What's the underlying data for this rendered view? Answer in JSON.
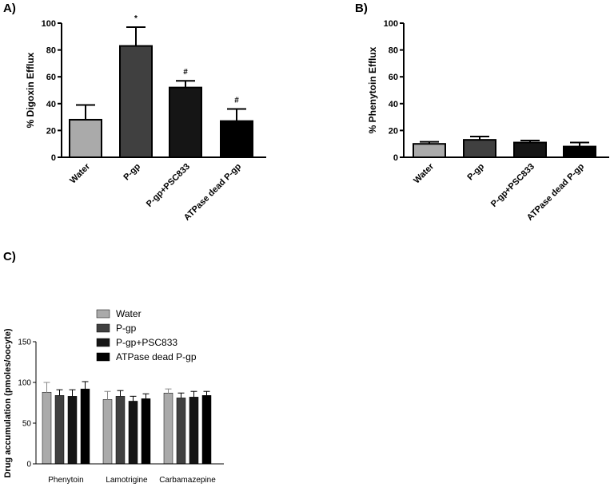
{
  "colors": {
    "water": "#aaaaaa",
    "pgp": "#404040",
    "pgp_psc833": "#151515",
    "atpase_dead": "#000000"
  },
  "chart_data": [
    {
      "panel": "A)",
      "type": "bar",
      "ylabel": "% Digoxin Efflux",
      "ylim": [
        0,
        100
      ],
      "yticks": [
        0,
        20,
        40,
        60,
        80,
        100
      ],
      "categories": [
        "Water",
        "P-gp",
        "P-gp+PSC833",
        "ATPase dead P-gp"
      ],
      "values": [
        28,
        83,
        52,
        27
      ],
      "errors": [
        11,
        14,
        5,
        9
      ],
      "annotations": [
        "",
        "*",
        "#",
        "#"
      ]
    },
    {
      "panel": "B)",
      "type": "bar",
      "ylabel": "% Phenytoin Efflux",
      "ylim": [
        0,
        100
      ],
      "yticks": [
        0,
        20,
        40,
        60,
        80,
        100
      ],
      "categories": [
        "Water",
        "P-gp",
        "P-gp+PSC833",
        "ATPase dead P-gp"
      ],
      "values": [
        10,
        13,
        11,
        8
      ],
      "errors": [
        1.5,
        2.5,
        1.5,
        3
      ],
      "annotations": [
        "",
        "",
        "",
        ""
      ]
    },
    {
      "panel": "C)",
      "type": "bar",
      "ylabel": "Drug accumulation (pmoles/oocyte)",
      "ylim": [
        0,
        150
      ],
      "yticks": [
        0,
        50,
        100,
        150
      ],
      "categories": [
        "Phenytoin",
        "Lamotrigine",
        "Carbamazepine"
      ],
      "legend_position": "top",
      "series": [
        {
          "name": "Water",
          "values": [
            88,
            79,
            87
          ],
          "errors": [
            12,
            10,
            5
          ]
        },
        {
          "name": "P-gp",
          "values": [
            84,
            83,
            81
          ],
          "errors": [
            7,
            7,
            6
          ]
        },
        {
          "name": "P-gp+PSC833",
          "values": [
            83,
            77,
            82
          ],
          "errors": [
            8,
            6,
            7
          ]
        },
        {
          "name": "ATPase dead P-gp",
          "values": [
            92,
            80,
            84
          ],
          "errors": [
            9,
            6,
            5
          ]
        }
      ]
    }
  ]
}
